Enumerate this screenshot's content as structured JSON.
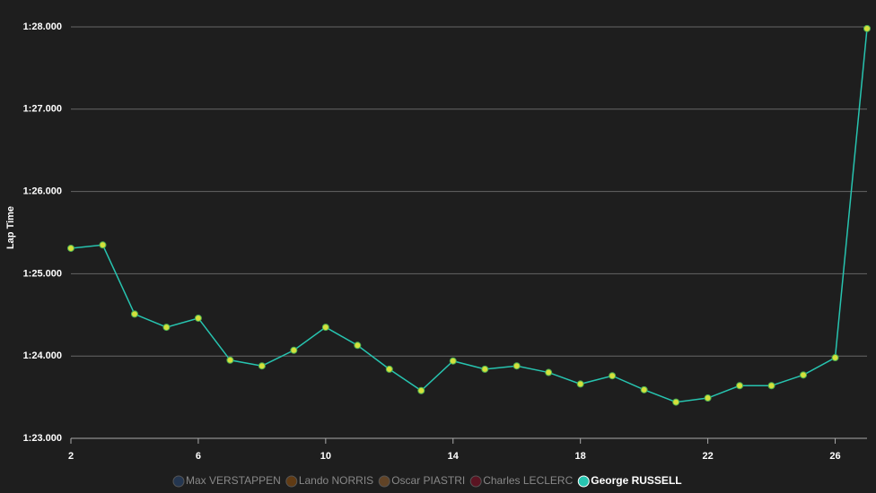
{
  "chart_data": {
    "type": "line",
    "y_label": "Lap Time",
    "x": [
      2,
      3,
      4,
      5,
      6,
      7,
      8,
      9,
      10,
      11,
      12,
      13,
      14,
      15,
      16,
      17,
      18,
      19,
      20,
      21,
      22,
      23,
      24,
      25,
      26,
      27
    ],
    "xlim": [
      2,
      27
    ],
    "xticks": [
      2,
      6,
      10,
      14,
      18,
      22,
      26
    ],
    "ylim": [
      83,
      88
    ],
    "yticks": [
      {
        "value": 83,
        "label": "1:23.000"
      },
      {
        "value": 84,
        "label": "1:24.000"
      },
      {
        "value": 85,
        "label": "1:25.000"
      },
      {
        "value": 86,
        "label": "1:26.000"
      },
      {
        "value": 87,
        "label": "1:27.000"
      },
      {
        "value": 88,
        "label": "1:28.000"
      }
    ],
    "grid": true,
    "marker_color": "#d4e03c",
    "series": [
      {
        "name": "Max VERSTAPPEN",
        "color": "#3671c6",
        "visible": false
      },
      {
        "name": "Lando NORRIS",
        "color": "#ff8000",
        "visible": false
      },
      {
        "name": "Oscar PIASTRI",
        "color": "#ff9a3c",
        "visible": false
      },
      {
        "name": "Charles LECLERC",
        "color": "#e8002d",
        "visible": false
      },
      {
        "name": "George RUSSELL",
        "color": "#27c4b0",
        "visible": true,
        "values": [
          85.31,
          85.35,
          84.51,
          84.35,
          84.46,
          83.95,
          83.88,
          84.07,
          84.35,
          84.13,
          83.84,
          83.58,
          83.94,
          83.84,
          83.88,
          83.8,
          83.66,
          83.76,
          83.59,
          83.44,
          83.49,
          83.64,
          83.64,
          83.77,
          83.98,
          87.98
        ]
      }
    ]
  }
}
